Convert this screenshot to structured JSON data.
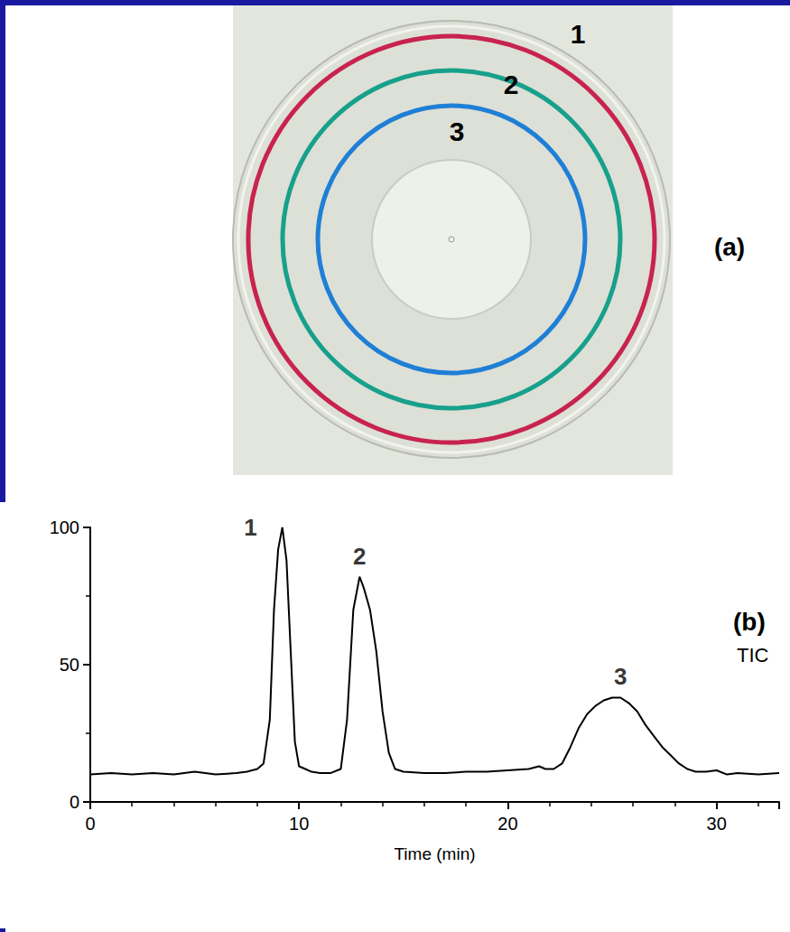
{
  "panel_a": {
    "label": "(a)",
    "rings": [
      {
        "label": "1",
        "color": "#c8234f"
      },
      {
        "label": "2",
        "color": "#17a08c"
      },
      {
        "label": "3",
        "color": "#1f7fd6"
      }
    ]
  },
  "chart_data": {
    "type": "line",
    "panel": "(b)",
    "annotations": [
      "TIC"
    ],
    "xlabel": "Time (min)",
    "color": "#000000",
    "x": [
      0,
      1,
      2,
      3,
      4,
      5,
      6,
      7,
      7.5,
      8,
      8.3,
      8.6,
      8.8,
      9.0,
      9.2,
      9.4,
      9.6,
      9.8,
      10.0,
      10.3,
      10.6,
      11,
      11.5,
      12,
      12.3,
      12.6,
      12.9,
      13.1,
      13.4,
      13.7,
      14.0,
      14.3,
      14.6,
      15,
      16,
      17,
      18,
      19,
      20,
      21,
      21.5,
      21.8,
      22.2,
      22.6,
      23,
      23.4,
      23.8,
      24.2,
      24.6,
      25,
      25.4,
      25.8,
      26.2,
      26.6,
      27,
      27.4,
      27.8,
      28.2,
      28.6,
      29,
      29.5,
      30,
      30.5,
      31,
      32,
      33
    ],
    "values": [
      10,
      10.5,
      10,
      10.5,
      10,
      11,
      10,
      10.5,
      11,
      12,
      14,
      30,
      70,
      92,
      100,
      88,
      55,
      22,
      13,
      12,
      11,
      10.5,
      10.5,
      12,
      30,
      70,
      82,
      78,
      70,
      55,
      33,
      18,
      12,
      11,
      10.5,
      10.5,
      11,
      11,
      11.5,
      12,
      13,
      12,
      12,
      14,
      20,
      27,
      32,
      35,
      37,
      38,
      38,
      36,
      33,
      28,
      24,
      20,
      17,
      14,
      12,
      11,
      11,
      11.5,
      10,
      10.5,
      10,
      10.5
    ],
    "peaks": [
      {
        "label": "1",
        "x": 9.2
      },
      {
        "label": "2",
        "x": 12.9
      },
      {
        "label": "3",
        "x": 25.4
      }
    ],
    "xlim": [
      0,
      33
    ],
    "xticks": [
      0,
      10,
      20,
      30
    ],
    "ylim": [
      0,
      100
    ],
    "yticks": [
      0,
      50,
      100
    ],
    "grid": false
  }
}
